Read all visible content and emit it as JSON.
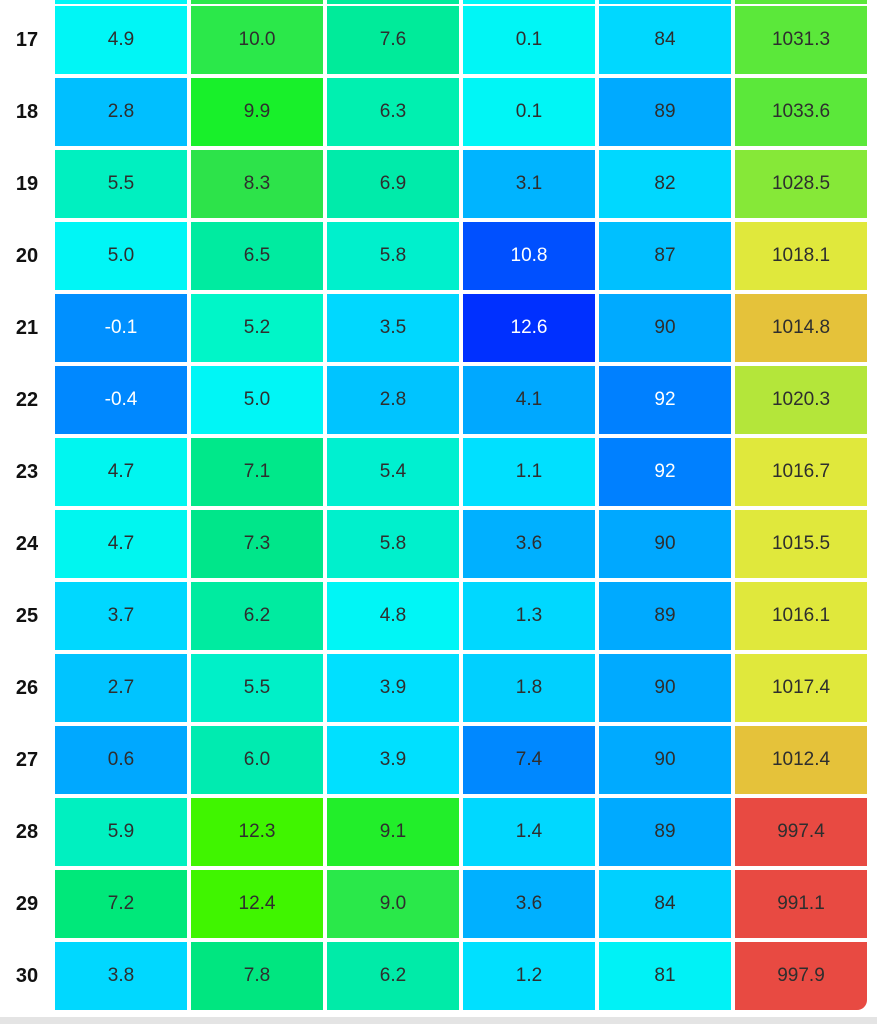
{
  "colors": {
    "c_cyan": "#00F6F6",
    "c_sky": "#00D8FF",
    "c_azure": "#00AAFF",
    "c_blue": "#007CFF",
    "c_deep": "#0030FF",
    "c_aqua": "#00F6C0",
    "c_mint": "#00EB9A",
    "c_green": "#00E65A",
    "c_lime": "#2BF00A",
    "c_lime2": "#40F500",
    "c_yg": "#5BE83A",
    "c_yg2": "#86E838",
    "c_yg3": "#B4E63A",
    "c_yellow": "#E0E83C",
    "c_amber": "#E5C23A",
    "c_red": "#E84A42"
  },
  "rows": [
    {
      "day": "17",
      "cells": [
        {
          "v": "4.9",
          "c": "#00F6F6"
        },
        {
          "v": "10.0",
          "c": "#2BE84A"
        },
        {
          "v": "7.6",
          "c": "#00EB9A"
        },
        {
          "v": "0.1",
          "c": "#00F6F6"
        },
        {
          "v": "84",
          "c": "#00D8FF"
        },
        {
          "v": "1031.3",
          "c": "#5BE83A"
        }
      ]
    },
    {
      "day": "18",
      "cells": [
        {
          "v": "2.8",
          "c": "#00BFFF"
        },
        {
          "v": "9.9",
          "c": "#18F02A"
        },
        {
          "v": "6.3",
          "c": "#00F0B0"
        },
        {
          "v": "0.1",
          "c": "#00F6F6"
        },
        {
          "v": "89",
          "c": "#00AAFF"
        },
        {
          "v": "1033.6",
          "c": "#5BE83A"
        }
      ]
    },
    {
      "day": "19",
      "cells": [
        {
          "v": "5.5",
          "c": "#00F0C0"
        },
        {
          "v": "8.3",
          "c": "#2DE34A"
        },
        {
          "v": "6.9",
          "c": "#00EBAA"
        },
        {
          "v": "3.1",
          "c": "#00B4FF"
        },
        {
          "v": "82",
          "c": "#00D8FF"
        },
        {
          "v": "1028.5",
          "c": "#86E838"
        }
      ]
    },
    {
      "day": "20",
      "cells": [
        {
          "v": "5.0",
          "c": "#00F6F6"
        },
        {
          "v": "6.5",
          "c": "#00EBA0"
        },
        {
          "v": "5.8",
          "c": "#00F0CC"
        },
        {
          "v": "10.8",
          "c": "#0050FF",
          "light": true
        },
        {
          "v": "87",
          "c": "#00C0FF"
        },
        {
          "v": "1018.1",
          "c": "#E0E83C"
        }
      ]
    },
    {
      "day": "21",
      "cells": [
        {
          "v": "-0.1",
          "c": "#0090FF",
          "light": true
        },
        {
          "v": "5.2",
          "c": "#00F6C8"
        },
        {
          "v": "3.5",
          "c": "#00D8FF"
        },
        {
          "v": "12.6",
          "c": "#0030FF",
          "light": true
        },
        {
          "v": "90",
          "c": "#00AAFF"
        },
        {
          "v": "1014.8",
          "c": "#E5C23A"
        }
      ]
    },
    {
      "day": "22",
      "cells": [
        {
          "v": "-0.4",
          "c": "#0088FF",
          "light": true
        },
        {
          "v": "5.0",
          "c": "#00F6F6"
        },
        {
          "v": "2.8",
          "c": "#00C4FF"
        },
        {
          "v": "4.1",
          "c": "#00A8FF"
        },
        {
          "v": "92",
          "c": "#0080FF",
          "light": true
        },
        {
          "v": "1020.3",
          "c": "#B4E63A"
        }
      ]
    },
    {
      "day": "23",
      "cells": [
        {
          "v": "4.7",
          "c": "#00F6F0"
        },
        {
          "v": "7.1",
          "c": "#00E88A"
        },
        {
          "v": "5.4",
          "c": "#00F0D0"
        },
        {
          "v": "1.1",
          "c": "#00E0FF"
        },
        {
          "v": "92",
          "c": "#0080FF",
          "light": true
        },
        {
          "v": "1016.7",
          "c": "#E0E83C"
        }
      ]
    },
    {
      "day": "24",
      "cells": [
        {
          "v": "4.7",
          "c": "#00F6F0"
        },
        {
          "v": "7.3",
          "c": "#00E68A"
        },
        {
          "v": "5.8",
          "c": "#00F0CC"
        },
        {
          "v": "3.6",
          "c": "#00B0FF"
        },
        {
          "v": "90",
          "c": "#00A8FF"
        },
        {
          "v": "1015.5",
          "c": "#E0E83C"
        }
      ]
    },
    {
      "day": "25",
      "cells": [
        {
          "v": "3.7",
          "c": "#00D8FF"
        },
        {
          "v": "6.2",
          "c": "#00EBA0"
        },
        {
          "v": "4.8",
          "c": "#00F6F6"
        },
        {
          "v": "1.3",
          "c": "#00D8FF"
        },
        {
          "v": "89",
          "c": "#00AAFF"
        },
        {
          "v": "1016.1",
          "c": "#E0E83C"
        }
      ]
    },
    {
      "day": "26",
      "cells": [
        {
          "v": "2.7",
          "c": "#00C4FF"
        },
        {
          "v": "5.5",
          "c": "#00F0C8"
        },
        {
          "v": "3.9",
          "c": "#00E0FF"
        },
        {
          "v": "1.8",
          "c": "#00D0FF"
        },
        {
          "v": "90",
          "c": "#00AAFF"
        },
        {
          "v": "1017.4",
          "c": "#E0E83C"
        }
      ]
    },
    {
      "day": "27",
      "cells": [
        {
          "v": "0.6",
          "c": "#00A8FF"
        },
        {
          "v": "6.0",
          "c": "#00EBB0"
        },
        {
          "v": "3.9",
          "c": "#00E0FF"
        },
        {
          "v": "7.4",
          "c": "#0088FF"
        },
        {
          "v": "90",
          "c": "#00AAFF"
        },
        {
          "v": "1012.4",
          "c": "#E5C23A"
        }
      ]
    },
    {
      "day": "28",
      "cells": [
        {
          "v": "5.9",
          "c": "#00F0C0"
        },
        {
          "v": "12.3",
          "c": "#40F500"
        },
        {
          "v": "9.1",
          "c": "#22EE2A"
        },
        {
          "v": "1.4",
          "c": "#00D8FF"
        },
        {
          "v": "89",
          "c": "#00AAFF"
        },
        {
          "v": "997.4",
          "c": "#E84A42"
        }
      ]
    },
    {
      "day": "29",
      "cells": [
        {
          "v": "7.2",
          "c": "#00E87A"
        },
        {
          "v": "12.4",
          "c": "#40F500"
        },
        {
          "v": "9.0",
          "c": "#2AE84A"
        },
        {
          "v": "3.6",
          "c": "#00B0FF"
        },
        {
          "v": "84",
          "c": "#00D0FF"
        },
        {
          "v": "991.1",
          "c": "#E84A42"
        }
      ]
    },
    {
      "day": "30",
      "cells": [
        {
          "v": "3.8",
          "c": "#00D8FF"
        },
        {
          "v": "7.8",
          "c": "#00E680"
        },
        {
          "v": "6.2",
          "c": "#00EBA8"
        },
        {
          "v": "1.2",
          "c": "#00E0FF"
        },
        {
          "v": "81",
          "c": "#00F2F6"
        },
        {
          "v": "997.9",
          "c": "#E84A42"
        }
      ]
    }
  ]
}
